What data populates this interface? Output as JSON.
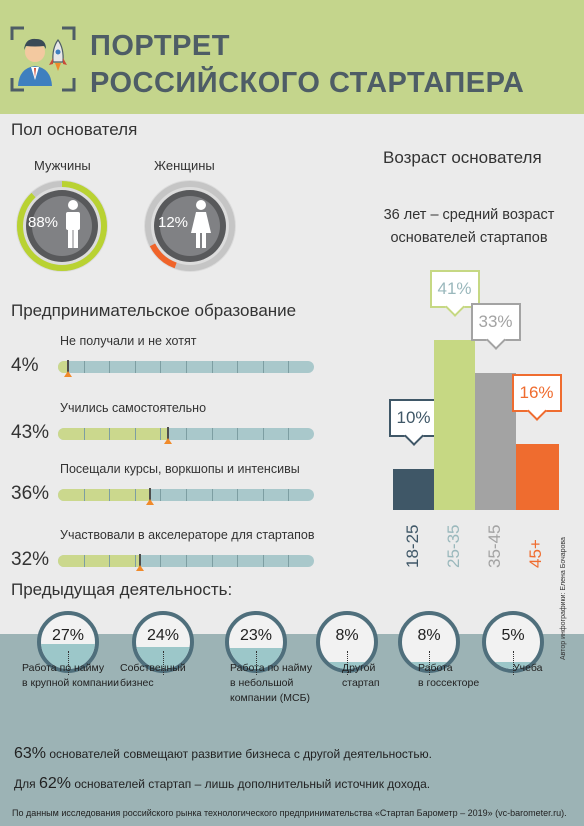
{
  "header": {
    "title_line1": "ПОРТРЕТ",
    "title_line2": "РОССИЙСКОГО СТАРТАПЕРА",
    "icon": "businessman-with-rocket-icon"
  },
  "gender": {
    "title": "Пол основателя",
    "male": {
      "label": "Мужчины",
      "percent_text": "88%",
      "value": 88,
      "color": "#b9d232"
    },
    "female": {
      "label": "Женщины",
      "percent_text": "12%",
      "value": 12,
      "color": "#f0642a"
    }
  },
  "education": {
    "title": "Предпринимательское образование",
    "items": [
      {
        "percent_text": "4%",
        "value": 4,
        "label": "Не получали и не хотят"
      },
      {
        "percent_text": "43%",
        "value": 43,
        "label": "Учились самостоятельно"
      },
      {
        "percent_text": "36%",
        "value": 36,
        "label": "Посещали курсы, воркшопы и интенсивы"
      },
      {
        "percent_text": "32%",
        "value": 32,
        "label": "Участвовали в акселераторе для стартапов"
      }
    ]
  },
  "age": {
    "title": "Возраст основателя",
    "subtitle": "36 лет – средний возраст основателей стартапов",
    "chart_data": {
      "type": "bar",
      "categories": [
        "18-25",
        "25-35",
        "35-45",
        "45+"
      ],
      "values": [
        10,
        41,
        33,
        16
      ],
      "value_labels": [
        "10%",
        "41%",
        "33%",
        "16%"
      ],
      "colors": [
        "#3f5767",
        "#c6d883",
        "#a3a3a3",
        "#ef6c2f"
      ],
      "label_colors": [
        "#3f5767",
        "#9ab8bc",
        "#a3a3a3",
        "#ef6c2f"
      ],
      "ylim": [
        0,
        41
      ]
    }
  },
  "previous": {
    "title": "Предыдущая деятельность:",
    "items": [
      {
        "percent_text": "27%",
        "value": 27,
        "label_lines": [
          "Работа по найму",
          "в крупной компании"
        ]
      },
      {
        "percent_text": "24%",
        "value": 24,
        "label_lines": [
          "Собственный",
          "бизнес"
        ]
      },
      {
        "percent_text": "23%",
        "value": 23,
        "label_lines": [
          "Работа по найму",
          "в небольшой",
          "компании (МСБ)"
        ]
      },
      {
        "percent_text": "8%",
        "value": 8,
        "label_lines": [
          "Другой",
          "стартап"
        ]
      },
      {
        "percent_text": "8%",
        "value": 8,
        "label_lines": [
          "Работа",
          "в госсекторе"
        ]
      },
      {
        "percent_text": "5%",
        "value": 5,
        "label_lines": [
          "Учеба"
        ]
      }
    ]
  },
  "summary": {
    "line1_num": "63%",
    "line1_text": " основателей совмещают развитие бизнеса с другой деятельностью.",
    "line2_pre": "Для ",
    "line2_num": "62%",
    "line2_text": " основателей стартап – лишь дополнительный источник дохода."
  },
  "source": "По данным исследования российского рынка технологического предпринимательства «Стартап Барометр – 2019» (vc-barometer.ru).",
  "author": "Автор инфографики: Елена Бочарова"
}
